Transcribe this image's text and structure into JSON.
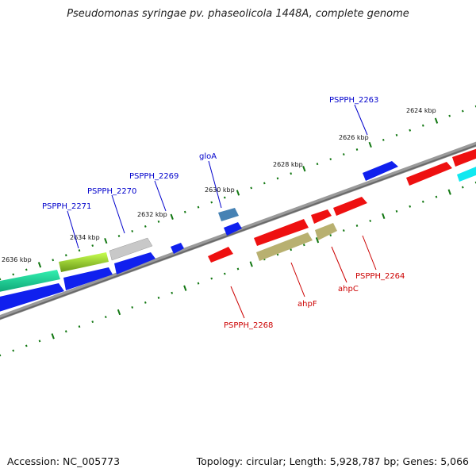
{
  "title": "Pseudomonas syringae pv. phaseolicola 1448A, complete genome",
  "footer": {
    "accession": "Accession: NC_005773",
    "stats": "Topology: circular; Length: 5,928,787 bp; Genes: 5,066"
  },
  "colors": {
    "forward_gene": "#0000ee",
    "reverse_gene": "#ee0000",
    "backbone": "#808080",
    "tick": "#117711"
  },
  "scale_ticks": [
    "2624 kbp",
    "2626 kbp",
    "2628 kbp",
    "2630 kbp",
    "2632 kbp",
    "2634 kbp",
    "2636 kbp"
  ],
  "gene_labels": {
    "top": [
      "PSPPH_2263",
      "gloA",
      "PSPPH_2269",
      "PSPPH_2270",
      "PSPPH_2271"
    ],
    "bottom": [
      "PSPPH_2264",
      "ahpC",
      "ahpF",
      "PSPPH_2268"
    ]
  }
}
